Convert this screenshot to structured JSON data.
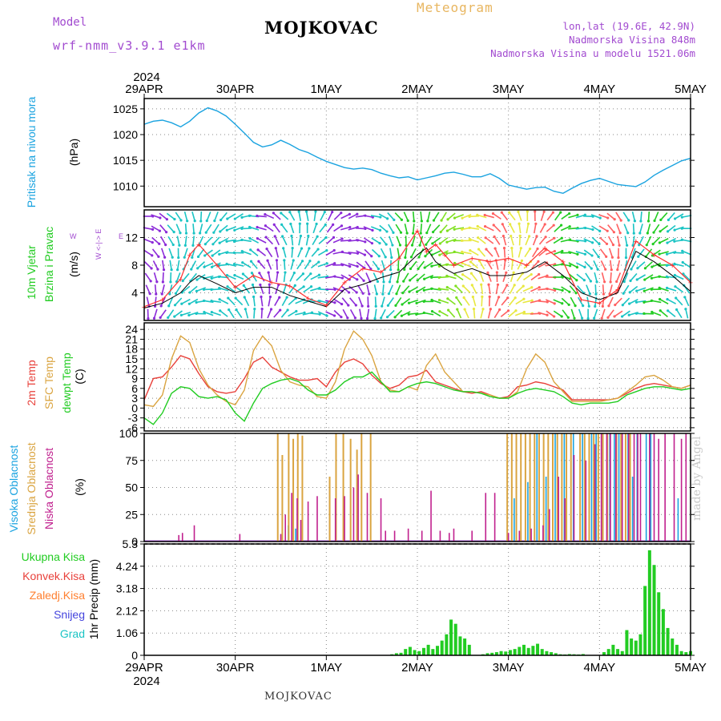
{
  "header": {
    "model_label": "Model",
    "model_name": "wrf-nmm_v3.9.1 e1km",
    "station": "MOJKOVAC",
    "meteogram": "Meteogram",
    "lonlat": "lon,lat (19.6E, 42.9N)",
    "elevation": "Nadmorska Visina 848m",
    "model_elevation": "Nadmorska Visina u modelu 1521.06m"
  },
  "footer": {
    "station": "MOJKOVAC",
    "credit": "made by Angel"
  },
  "time_axis": {
    "year": "2024",
    "labels": [
      "29APR",
      "30APR",
      "1MAY",
      "2MAY",
      "3MAY",
      "4MAY",
      "5MAY"
    ]
  },
  "colors": {
    "pressure": "#1aa3e0",
    "wind_speed": "#000000",
    "wind_gust": "#ff3030",
    "temp_2m": "#e8403a",
    "temp_sfc": "#daa440",
    "dewpoint": "#22cc22",
    "cloud_high": "#1aa3e0",
    "cloud_mid": "#daa440",
    "cloud_low": "#c0208e",
    "precip_total": "#22cc22",
    "precip_conv": "#e8403a",
    "precip_frozen": "#ff8030",
    "snow": "#4444dd",
    "hail": "#1ac4c4"
  },
  "chart_data": [
    {
      "type": "line",
      "id": "pressure",
      "ylabel": "Pritisak na nivou mora",
      "unit": "(hPa)",
      "ylim": [
        1006,
        1027
      ],
      "yticks": [
        1010,
        1015,
        1020,
        1025
      ],
      "grid": true,
      "x_days": [
        0,
        0.1,
        0.2,
        0.3,
        0.4,
        0.5,
        0.6,
        0.7,
        0.8,
        0.9,
        1,
        1.1,
        1.2,
        1.3,
        1.4,
        1.5,
        1.6,
        1.7,
        1.8,
        1.9,
        2,
        2.1,
        2.2,
        2.3,
        2.4,
        2.5,
        2.6,
        2.7,
        2.8,
        2.9,
        3,
        3.1,
        3.2,
        3.3,
        3.4,
        3.5,
        3.6,
        3.7,
        3.8,
        3.9,
        4,
        4.1,
        4.2,
        4.3,
        4.4,
        4.5,
        4.6,
        4.7,
        4.8,
        4.9,
        5,
        5.1,
        5.2,
        5.3,
        5.4,
        5.5,
        5.6,
        5.7,
        5.8,
        5.9,
        6
      ],
      "series": [
        {
          "name": "Pritisak na nivou mora",
          "values": [
            1022.0,
            1022.6,
            1022.8,
            1022.3,
            1021.5,
            1022.6,
            1024.2,
            1025.2,
            1024.6,
            1023.6,
            1022.0,
            1020.3,
            1018.5,
            1017.6,
            1018.0,
            1018.9,
            1018.1,
            1017.1,
            1016.5,
            1015.6,
            1014.8,
            1014.2,
            1013.6,
            1013.3,
            1013.5,
            1013.2,
            1012.5,
            1012.0,
            1011.6,
            1011.8,
            1011.2,
            1011.6,
            1012.0,
            1012.5,
            1012.7,
            1012.3,
            1011.8,
            1011.8,
            1012.4,
            1011.5,
            1010.2,
            1009.8,
            1009.4,
            1009.7,
            1009.8,
            1009.0,
            1008.6,
            1009.6,
            1010.5,
            1011.1,
            1011.5,
            1010.9,
            1010.3,
            1010.1,
            1009.9,
            1010.8,
            1012.1,
            1013.1,
            1014.0,
            1014.9,
            1015.4
          ]
        }
      ]
    },
    {
      "type": "line",
      "id": "wind",
      "ylabel": "10m Vjetar Brzina i Pravac",
      "unit": "(m/s)",
      "compass": "W <-|-> E",
      "ylim": [
        0,
        16
      ],
      "yticks": [
        4,
        8,
        12
      ],
      "grid": true,
      "x_days": [
        0,
        0.2,
        0.4,
        0.5,
        0.6,
        0.8,
        1.0,
        1.2,
        1.4,
        1.6,
        1.8,
        2.0,
        2.2,
        2.4,
        2.6,
        2.8,
        3.0,
        3.1,
        3.2,
        3.3,
        3.4,
        3.6,
        3.8,
        4.0,
        4.2,
        4.4,
        4.6,
        4.8,
        5.0,
        5.2,
        5.4,
        5.6,
        5.8,
        6.0
      ],
      "series": [
        {
          "name": "speed",
          "values": [
            1.8,
            2.5,
            4.0,
            5.5,
            6.5,
            5.3,
            4.0,
            4.8,
            4.8,
            3.6,
            2.8,
            2.0,
            4.5,
            5.2,
            6.2,
            7.0,
            9.5,
            10.5,
            8.5,
            7.5,
            6.8,
            7.5,
            6.5,
            6.5,
            7.0,
            8.5,
            6.5,
            4.0,
            3.0,
            4.0,
            10.0,
            8.5,
            6.5,
            4.2
          ]
        },
        {
          "name": "gust",
          "values": [
            2.0,
            3.0,
            6.0,
            9.5,
            11.0,
            8.0,
            4.8,
            6.5,
            5.5,
            5.0,
            3.2,
            2.2,
            5.5,
            7.5,
            7.0,
            9.0,
            13.0,
            10.0,
            11.0,
            9.5,
            8.0,
            9.0,
            8.5,
            9.0,
            8.0,
            10.5,
            8.5,
            3.0,
            2.5,
            4.5,
            11.5,
            9.5,
            8.0,
            5.5
          ]
        }
      ],
      "arrow_band_colors": [
        "#8b2ad8",
        "#1ac4c4",
        "#1ac4c4",
        "#1ac4c4",
        "#1ac4c4",
        "#8b2ad8",
        "#1ac4c4",
        "#1ac4c4",
        "#8b2ad8",
        "#8b2ad8",
        "#1ac4c4",
        "#22cc22",
        "#22cc22",
        "#7fe020",
        "#e8e840",
        "#ff6060",
        "#e8e840",
        "#ff6060",
        "#22cc22",
        "#1ac4c4",
        "#ff6060",
        "#1ac4c4",
        "#22cc22",
        "#1ac4c4"
      ]
    },
    {
      "type": "line",
      "id": "temperature",
      "ylabel_lines": [
        "2m Temp",
        "SFC Temp",
        "dewpt Temp"
      ],
      "unit": "(C)",
      "ylim": [
        -7,
        26
      ],
      "yticks": [
        -6,
        -3,
        0,
        3,
        6,
        9,
        12,
        15,
        18,
        21,
        24
      ],
      "grid": true,
      "x_days": [
        0,
        0.1,
        0.2,
        0.3,
        0.4,
        0.5,
        0.6,
        0.7,
        0.8,
        0.9,
        1,
        1.1,
        1.2,
        1.3,
        1.4,
        1.5,
        1.6,
        1.7,
        1.8,
        1.9,
        2,
        2.1,
        2.2,
        2.3,
        2.4,
        2.5,
        2.6,
        2.7,
        2.8,
        2.9,
        3,
        3.1,
        3.2,
        3.3,
        3.4,
        3.5,
        3.6,
        3.7,
        3.8,
        3.9,
        4,
        4.1,
        4.2,
        4.3,
        4.4,
        4.5,
        4.6,
        4.7,
        4.8,
        4.9,
        5,
        5.1,
        5.2,
        5.3,
        5.4,
        5.5,
        5.6,
        5.7,
        5.8,
        5.9,
        6
      ],
      "series": [
        {
          "name": "2m Temp",
          "values": [
            2.5,
            9.0,
            9.5,
            12.5,
            16.0,
            15.0,
            10.5,
            6.5,
            5.0,
            4.5,
            5.0,
            9.0,
            14.0,
            15.5,
            12.5,
            11.0,
            9.5,
            8.5,
            8.5,
            9.0,
            6.5,
            11.0,
            14.0,
            15.0,
            13.5,
            10.0,
            7.5,
            6.0,
            7.0,
            9.5,
            10.0,
            11.5,
            8.0,
            7.0,
            6.0,
            5.0,
            4.5,
            5.0,
            4.0,
            3.0,
            3.5,
            6.5,
            7.0,
            8.0,
            7.5,
            6.5,
            5.5,
            2.5,
            2.5,
            2.5,
            2.5,
            2.5,
            3.0,
            4.5,
            6.0,
            7.0,
            7.5,
            7.0,
            6.5,
            6.0,
            7.0
          ]
        },
        {
          "name": "SFC Temp",
          "values": [
            1.0,
            0.5,
            4.0,
            15.0,
            22.0,
            20.0,
            12.0,
            7.0,
            4.0,
            2.0,
            1.0,
            5.5,
            17.5,
            22.0,
            19.0,
            11.5,
            8.0,
            7.0,
            6.5,
            3.5,
            3.0,
            8.0,
            18.0,
            23.5,
            21.0,
            16.0,
            8.0,
            5.5,
            5.0,
            6.5,
            5.5,
            13.0,
            16.5,
            11.0,
            8.0,
            5.0,
            5.0,
            4.5,
            4.0,
            3.0,
            3.0,
            5.0,
            12.0,
            16.5,
            14.0,
            8.0,
            5.0,
            2.0,
            2.0,
            2.0,
            2.0,
            2.5,
            3.0,
            5.0,
            7.0,
            9.5,
            10.0,
            8.5,
            6.5,
            6.0,
            7.0
          ]
        },
        {
          "name": "dewpt Temp",
          "values": [
            -3.0,
            -5.0,
            -1.5,
            4.5,
            6.5,
            6.0,
            3.5,
            3.0,
            3.5,
            2.5,
            -1.5,
            -4.0,
            1.5,
            6.0,
            7.5,
            8.5,
            9.0,
            8.0,
            5.5,
            4.0,
            4.0,
            5.5,
            8.0,
            9.5,
            9.5,
            11.0,
            8.0,
            5.0,
            5.0,
            6.5,
            7.5,
            8.0,
            7.5,
            6.5,
            5.5,
            5.0,
            5.0,
            4.5,
            3.5,
            3.0,
            3.0,
            4.5,
            5.5,
            6.0,
            5.5,
            5.0,
            3.5,
            1.5,
            1.0,
            1.5,
            1.5,
            1.5,
            2.0,
            4.0,
            5.0,
            6.0,
            6.5,
            6.5,
            6.0,
            5.5,
            6.0
          ]
        }
      ]
    },
    {
      "type": "bar",
      "id": "clouds",
      "ylabel_lines": [
        "Visoka Oblacnost",
        "Srednja Oblacnost",
        "Niska Oblacnost"
      ],
      "unit": "(%)",
      "ylim": [
        0,
        100
      ],
      "yticks": [
        0,
        25,
        50,
        75,
        100
      ],
      "grid": true,
      "series": [
        {
          "name": "Visoka Oblacnost",
          "x_days": [
            1.57,
            1.65,
            4.05,
            4.2,
            4.3,
            4.4,
            4.5,
            4.6,
            4.7,
            4.8,
            4.9,
            4.95,
            5.02,
            5.1,
            5.15,
            5.2,
            5.3,
            5.35,
            5.4,
            5.5,
            5.55,
            5.85
          ],
          "values": [
            15,
            12,
            40,
            55,
            100,
            60,
            100,
            100,
            100,
            100,
            100,
            100,
            100,
            100,
            100,
            100,
            100,
            60,
            100,
            100,
            100,
            40
          ]
        },
        {
          "name": "Srednja Oblacnost",
          "x_days": [
            1.48,
            1.53,
            1.6,
            1.65,
            1.7,
            1.75,
            2.05,
            2.12,
            2.2,
            2.28,
            2.35,
            2.4,
            2.5,
            4.0,
            4.05,
            4.1,
            4.15,
            4.2,
            4.25,
            4.3,
            4.35,
            4.4,
            4.45,
            4.5,
            4.55,
            4.6,
            4.65,
            4.7,
            4.8,
            4.85,
            4.9,
            4.95,
            5.0,
            5.05,
            5.1,
            5.2,
            5.25,
            5.3,
            5.35
          ],
          "values": [
            100,
            80,
            100,
            95,
            100,
            98,
            60,
            100,
            100,
            95,
            85,
            100,
            100,
            100,
            100,
            100,
            100,
            100,
            100,
            100,
            100,
            100,
            100,
            100,
            100,
            100,
            100,
            100,
            100,
            100,
            100,
            100,
            100,
            100,
            100,
            100,
            100,
            100,
            100
          ]
        },
        {
          "name": "Niska Oblacnost",
          "x_days": [
            0.38,
            0.42,
            0.55,
            1.05,
            1.5,
            1.55,
            1.62,
            1.68,
            1.72,
            1.8,
            1.9,
            2.1,
            2.2,
            2.3,
            2.35,
            2.45,
            2.6,
            2.65,
            2.75,
            2.9,
            3.05,
            3.15,
            3.25,
            3.35,
            3.4,
            3.6,
            3.75,
            3.85,
            4.0,
            4.12,
            4.25,
            4.38,
            4.45,
            4.55,
            4.62,
            4.72,
            4.85,
            4.95,
            5.02,
            5.08,
            5.12,
            5.18,
            5.25,
            5.32,
            5.38,
            5.42,
            5.45,
            5.55,
            5.6,
            5.65,
            5.72,
            5.82,
            5.9,
            5.95
          ],
          "values": [
            6,
            8,
            15,
            7,
            7,
            25,
            45,
            40,
            20,
            37,
            42,
            40,
            42,
            50,
            62,
            45,
            40,
            10,
            10,
            12,
            10,
            47,
            10,
            8,
            12,
            10,
            45,
            45,
            8,
            10,
            12,
            15,
            30,
            60,
            40,
            80,
            75,
            90,
            100,
            100,
            100,
            100,
            100,
            100,
            100,
            100,
            100,
            100,
            100,
            95,
            100,
            100,
            95,
            100
          ]
        }
      ]
    },
    {
      "type": "bar",
      "id": "precip",
      "ylabel": "1hr Precip",
      "unit": "(mm)",
      "legend": [
        "Ukupna Kisa",
        "Konvek.Kisa",
        "Zaledj.Kisa",
        "Snijeg",
        "Grad"
      ],
      "ylim": [
        0,
        5.3
      ],
      "yticks": [
        0,
        1.06,
        2.12,
        3.18,
        4.24,
        5.3
      ],
      "grid": true,
      "x_days": [
        2.72,
        2.77,
        2.82,
        2.87,
        2.92,
        2.97,
        3.02,
        3.07,
        3.12,
        3.17,
        3.22,
        3.27,
        3.32,
        3.37,
        3.42,
        3.47,
        3.52,
        3.57,
        3.72,
        3.77,
        3.82,
        3.87,
        3.92,
        3.97,
        4.02,
        4.07,
        4.12,
        4.17,
        4.22,
        4.27,
        4.32,
        4.37,
        4.42,
        4.47,
        4.52,
        4.57,
        4.62,
        4.67,
        4.72,
        4.77,
        4.82,
        5.05,
        5.1,
        5.15,
        5.2,
        5.25,
        5.3,
        5.35,
        5.4,
        5.45,
        5.5,
        5.55,
        5.6,
        5.65,
        5.7,
        5.75,
        5.8,
        5.85,
        5.9,
        5.95,
        6.0
      ],
      "values": [
        0.05,
        0.1,
        0.12,
        0.3,
        0.4,
        0.25,
        0.2,
        0.35,
        0.5,
        0.3,
        0.45,
        0.7,
        1.0,
        1.7,
        1.5,
        0.9,
        0.8,
        0.5,
        0.05,
        0.1,
        0.12,
        0.15,
        0.2,
        0.18,
        0.25,
        0.3,
        0.4,
        0.5,
        0.35,
        0.45,
        0.55,
        0.3,
        0.2,
        0.15,
        0.1,
        0.05,
        0.04,
        0.06,
        0.05,
        0.04,
        0.06,
        0.15,
        0.3,
        0.5,
        0.3,
        0.2,
        1.2,
        0.8,
        0.7,
        1.0,
        3.3,
        5.0,
        4.3,
        3.0,
        2.2,
        1.3,
        0.8,
        0.5,
        0.2,
        0.15,
        0.2
      ]
    }
  ]
}
